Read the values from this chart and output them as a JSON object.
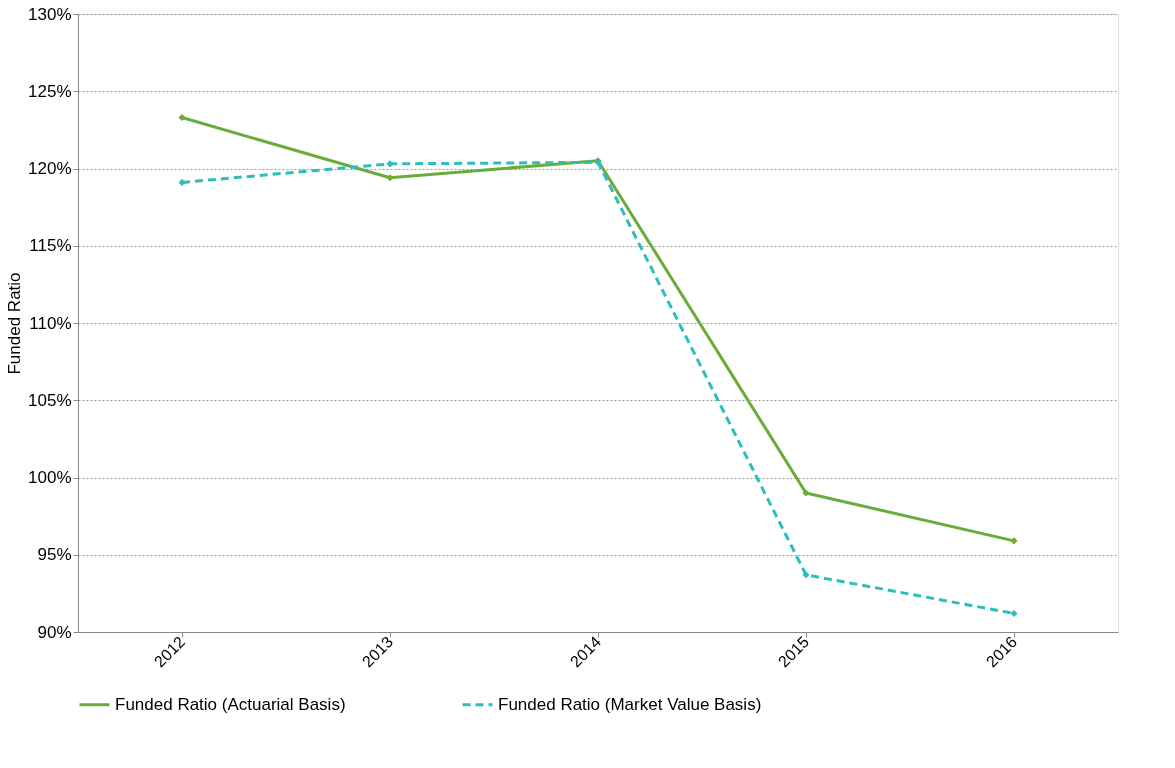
{
  "chart_data": {
    "type": "line",
    "ylabel": "Funded Ratio",
    "categories": [
      "2012",
      "2013",
      "2014",
      "2015",
      "2016"
    ],
    "series": [
      {
        "name": "Funded Ratio (Actuarial Basis)",
        "color": "#6aac3a",
        "line_style": "solid",
        "values": [
          123.3,
          119.4,
          120.5,
          99.0,
          95.9
        ]
      },
      {
        "name": "Funded Ratio (Market Value Basis)",
        "color": "#2cbdbd",
        "line_style": "dashed",
        "values": [
          119.1,
          120.3,
          120.4,
          93.7,
          91.2
        ]
      }
    ],
    "ylim": [
      90,
      130
    ],
    "yticks": [
      {
        "value": 90,
        "label": "90%"
      },
      {
        "value": 95,
        "label": "95%"
      },
      {
        "value": 100,
        "label": "100%"
      },
      {
        "value": 105,
        "label": "105%"
      },
      {
        "value": 110,
        "label": "110%"
      },
      {
        "value": 115,
        "label": "115%"
      },
      {
        "value": 120,
        "label": "120%"
      },
      {
        "value": 125,
        "label": "125%"
      },
      {
        "value": 130,
        "label": "130%"
      }
    ],
    "grid": "y",
    "legend": "bottom",
    "marker": "diamond"
  }
}
